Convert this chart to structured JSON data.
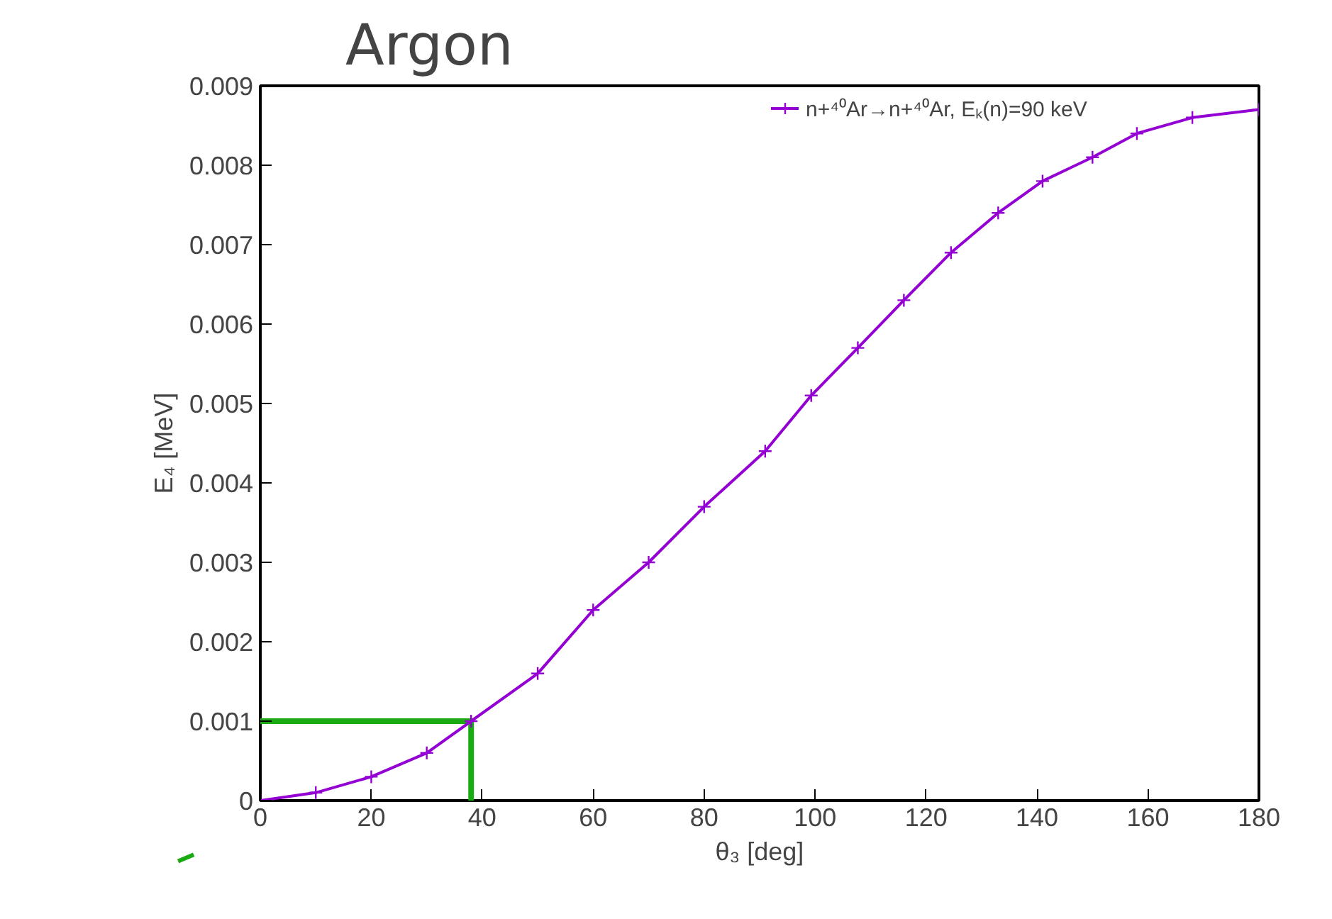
{
  "chart_data": {
    "type": "line",
    "title": "Argon",
    "xlabel": "θ₃ [deg]",
    "ylabel": "E₄ [MeV]",
    "xlim": [
      0,
      180
    ],
    "xticks": [
      0,
      20,
      40,
      60,
      80,
      100,
      120,
      140,
      160,
      180
    ],
    "ylim": [
      0,
      0.009
    ],
    "yticks": [
      0,
      0.001,
      0.002,
      0.003,
      0.004,
      0.005,
      0.006,
      0.007,
      0.008,
      0.009
    ],
    "grid": false,
    "legend": "top right",
    "marker": "cross",
    "line_style": "solid",
    "series": [
      {
        "name": "n+⁴⁰Ar→n+⁴⁰Ar, Eₖ(n)=90 keV",
        "color": "#9400d3",
        "x": [
          0,
          10,
          20,
          30,
          38,
          50,
          60,
          70,
          80,
          91,
          99.3,
          107.7,
          116,
          124.5,
          133,
          141,
          150,
          158,
          168,
          180
        ],
        "values": [
          0,
          0.0001,
          0.0003,
          0.0006,
          0.001,
          0.0016,
          0.0024,
          0.003,
          0.0037,
          0.0044,
          0.0051,
          0.0057,
          0.0063,
          0.0069,
          0.0074,
          0.0078,
          0.0081,
          0.0084,
          0.0086,
          0.0087
        ]
      },
      {
        "color": "#1aaa11",
        "type": "line",
        "marker": "none",
        "x": [
          0,
          38,
          38
        ],
        "values": [
          0.001,
          0.001,
          0
        ]
      }
    ]
  }
}
